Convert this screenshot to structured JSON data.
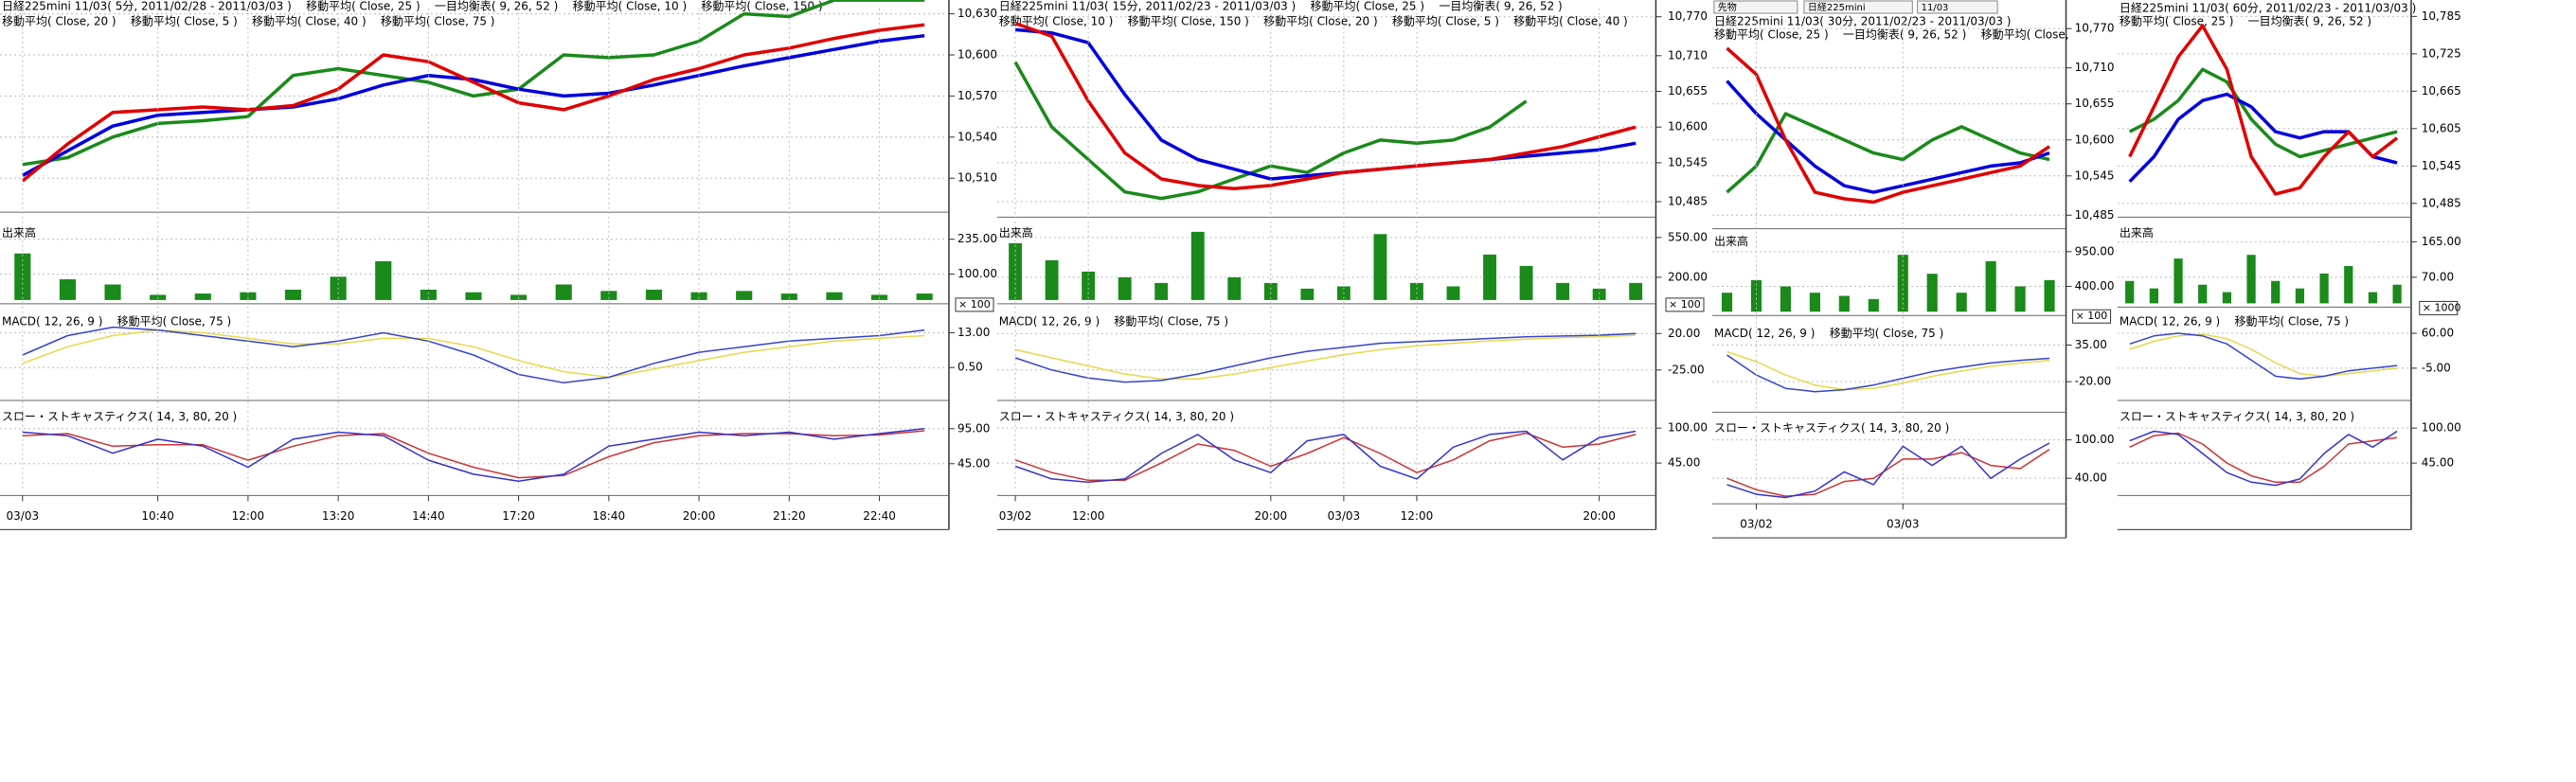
{
  "toolbar": [
    "先物",
    "日経225mini",
    "11/03"
  ],
  "chart_data": [
    {
      "type": "line",
      "title": "日経225mini 11/03( 5分, 2011/02/28 - 2011/03/03 )    移動平均( Close, 25 )    一目均衡表( 9, 26, 52 )    移動平均( Close, 10 )    移動平均( Close, 150 )",
      "subtitle": "移動平均( Close, 20 )    移動平均( Close, 5 )    移動平均( Close, 40 )    移動平均( Close, 75 )",
      "ylim": [
        10488,
        10634
      ],
      "yticks": [
        {
          "value": 10630,
          "label": "10,630"
        },
        {
          "value": 10600,
          "label": "10,600"
        },
        {
          "value": 10570,
          "label": "10,570"
        },
        {
          "value": 10540,
          "label": "10,540"
        },
        {
          "value": 10510,
          "label": "10,510"
        }
      ],
      "grid": true,
      "series": [
        {
          "color": "#1a8a1a",
          "values": [
            10520,
            10525,
            10540,
            10550,
            10552,
            10555,
            10585,
            10590,
            10585,
            10580,
            10570,
            10575,
            10600,
            10598,
            10600,
            10610,
            10630,
            10628,
            10640,
            10640,
            10640
          ]
        },
        {
          "color": "#0000dd",
          "values": [
            10512,
            10530,
            10548,
            10556,
            10558,
            10560,
            10562,
            10568,
            10578,
            10585,
            10582,
            10575,
            10570,
            10572,
            10578,
            10585,
            10592,
            10598,
            10604,
            10610,
            10614
          ]
        },
        {
          "color": "#e00000",
          "values": [
            10508,
            10535,
            10558,
            10560,
            10562,
            10560,
            10563,
            10575,
            10600,
            10595,
            10580,
            10565,
            10560,
            10570,
            10582,
            10590,
            10600,
            10605,
            10612,
            10618,
            10622
          ]
        }
      ]
    },
    {
      "type": "bar",
      "title": "出来高",
      "unit": "× 100",
      "color": "#1a8a1a",
      "ylim": [
        0,
        290
      ],
      "yticks": [
        {
          "value": 235,
          "label": "235.00"
        },
        {
          "value": 100,
          "label": "100.00"
        }
      ],
      "grid": true,
      "values": [
        180,
        80,
        60,
        20,
        25,
        30,
        40,
        90,
        150,
        40,
        30,
        20,
        60,
        35,
        40,
        30,
        35,
        25,
        30,
        20,
        25
      ]
    },
    {
      "type": "line",
      "title": "MACD( 12, 26, 9 )    移動平均( Close, 75 )",
      "ylim": [
        -10,
        20
      ],
      "yticks": [
        {
          "value": 13,
          "label": "13.00"
        },
        {
          "value": 0.5,
          "label": "0.50"
        }
      ],
      "grid": true,
      "series": [
        {
          "color": "#e8d84a",
          "values": [
            2,
            8,
            12,
            14,
            13,
            11,
            9,
            9,
            11,
            11,
            8,
            3,
            -1,
            -3,
            0,
            3,
            6,
            8,
            10,
            11,
            12
          ]
        },
        {
          "color": "#3344cc",
          "values": [
            5,
            12,
            15,
            14,
            12,
            10,
            8,
            10,
            13,
            10,
            5,
            -2,
            -5,
            -3,
            2,
            6,
            8,
            10,
            11,
            12,
            14
          ]
        }
      ]
    },
    {
      "type": "line",
      "title": "スロー・ストキャスティクス( 14, 3, 80, 20 )",
      "ylim": [
        5,
        124
      ],
      "yticks": [
        {
          "value": 95,
          "label": "95.00"
        },
        {
          "value": 45,
          "label": "45.00"
        }
      ],
      "grid": true,
      "categories": [
        "03/03",
        null,
        null,
        "10:40",
        null,
        "12:00",
        null,
        "13:20",
        null,
        "14:40",
        null,
        "17:20",
        null,
        "18:40",
        null,
        "20:00",
        null,
        "21:20",
        null,
        "22:40",
        null
      ],
      "series": [
        {
          "color": "#cc3333",
          "values": [
            85,
            88,
            70,
            72,
            72,
            50,
            70,
            85,
            88,
            60,
            40,
            25,
            28,
            55,
            75,
            85,
            88,
            88,
            85,
            86,
            92
          ]
        },
        {
          "color": "#3333cc",
          "values": [
            90,
            85,
            60,
            80,
            70,
            40,
            80,
            90,
            85,
            50,
            30,
            20,
            30,
            70,
            80,
            90,
            85,
            90,
            80,
            88,
            95
          ]
        }
      ]
    },
    {
      "type": "line",
      "title": "日経225mini 11/03( 15分, 2011/02/23 - 2011/03/03 )    移動平均( Close, 25 )    一目均衡表( 9, 26, 52 )",
      "subtitle": "移動平均( Close, 10 )    移動平均( Close, 150 )    移動平均( Close, 20 )    移動平均( Close, 5 )    移動平均( Close, 40 )",
      "ylim": [
        10467,
        10783
      ],
      "yticks": [
        {
          "value": 10770,
          "label": "10,770"
        },
        {
          "value": 10710,
          "label": "10,710"
        },
        {
          "value": 10655,
          "label": "10,655"
        },
        {
          "value": 10600,
          "label": "10,600"
        },
        {
          "value": 10545,
          "label": "10,545"
        },
        {
          "value": 10485,
          "label": "10,485"
        }
      ],
      "grid": true,
      "series": [
        {
          "color": "#1a8a1a",
          "values": [
            10700,
            10600,
            10550,
            10500,
            10490,
            10500,
            10520,
            10540,
            10530,
            10560,
            10580,
            10575,
            10580,
            10600,
            10640,
            null,
            null,
            null
          ]
        },
        {
          "color": "#0000dd",
          "values": [
            10750,
            10745,
            10730,
            10650,
            10580,
            10550,
            10535,
            10520,
            10525,
            10530,
            10535,
            10540,
            10545,
            10550,
            10555,
            10560,
            10565,
            10575
          ]
        },
        {
          "color": "#e00000",
          "values": [
            10760,
            10740,
            10640,
            10560,
            10520,
            10510,
            10505,
            10510,
            10520,
            10530,
            10535,
            10540,
            10545,
            10550,
            10560,
            10570,
            10585,
            10600
          ]
        }
      ]
    },
    {
      "type": "bar",
      "title": "出来高",
      "unit": "× 100",
      "color": "#1a8a1a",
      "ylim": [
        0,
        660
      ],
      "yticks": [
        {
          "value": 550,
          "label": "550.00"
        },
        {
          "value": 200,
          "label": "200.00"
        }
      ],
      "grid": true,
      "values": [
        500,
        350,
        250,
        200,
        150,
        600,
        200,
        150,
        100,
        120,
        580,
        150,
        120,
        400,
        300,
        150,
        100,
        150
      ]
    },
    {
      "type": "line",
      "title": "MACD( 12, 26, 9 )    移動平均( Close, 75 )",
      "ylim": [
        -58,
        45
      ],
      "yticks": [
        {
          "value": 20,
          "label": "20.00"
        },
        {
          "value": -25,
          "label": "-25.00"
        }
      ],
      "grid": true,
      "series": [
        {
          "color": "#e8d84a",
          "values": [
            0,
            -10,
            -20,
            -30,
            -36,
            -36,
            -30,
            -22,
            -14,
            -6,
            0,
            5,
            8,
            11,
            13,
            15,
            16,
            18
          ]
        },
        {
          "color": "#3344cc",
          "values": [
            -10,
            -25,
            -35,
            -40,
            -38,
            -30,
            -20,
            -10,
            -2,
            3,
            8,
            10,
            12,
            14,
            16,
            17,
            18,
            20
          ]
        }
      ]
    },
    {
      "type": "line",
      "title": "スロー・ストキャスティクス( 14, 3, 80, 20 )",
      "ylim": [
        0,
        131
      ],
      "yticks": [
        {
          "value": 100,
          "label": "100.00"
        },
        {
          "value": 45,
          "label": "45.00"
        }
      ],
      "grid": true,
      "categories": [
        "03/02",
        null,
        "12:00",
        null,
        null,
        null,
        null,
        "20:00",
        null,
        "03/03",
        null,
        "12:00",
        null,
        null,
        null,
        null,
        "20:00",
        null
      ],
      "series": [
        {
          "color": "#cc3333",
          "values": [
            50,
            30,
            18,
            18,
            45,
            75,
            65,
            40,
            60,
            85,
            60,
            30,
            50,
            80,
            92,
            70,
            75,
            90
          ]
        },
        {
          "color": "#3333cc",
          "values": [
            40,
            20,
            15,
            20,
            60,
            90,
            50,
            30,
            80,
            90,
            40,
            20,
            70,
            90,
            95,
            50,
            85,
            95
          ]
        }
      ]
    },
    {
      "type": "line",
      "title": "日経225mini 11/03( 30分, 2011/02/23 - 2011/03/03 )",
      "subtitle": "移動平均( Close, 25 )    一目均衡表( 9, 26, 52 )    移動平均( Close,",
      "ylim": [
        10470,
        10778
      ],
      "yticks": [
        {
          "value": 10770,
          "label": "10,770"
        },
        {
          "value": 10710,
          "label": "10,710"
        },
        {
          "value": 10655,
          "label": "10,655"
        },
        {
          "value": 10600,
          "label": "10,600"
        },
        {
          "value": 10545,
          "label": "10,545"
        },
        {
          "value": 10485,
          "label": "10,485"
        }
      ],
      "grid": true,
      "series": [
        {
          "color": "#1a8a1a",
          "values": [
            10520,
            10560,
            10640,
            10620,
            10600,
            10580,
            10570,
            10600,
            10620,
            10600,
            10580,
            10570
          ]
        },
        {
          "color": "#0000dd",
          "values": [
            10690,
            10640,
            10600,
            10560,
            10530,
            10520,
            10530,
            10540,
            10550,
            10560,
            10565,
            10580
          ]
        },
        {
          "color": "#e00000",
          "values": [
            10740,
            10700,
            10600,
            10520,
            10510,
            10505,
            10520,
            10530,
            10540,
            10550,
            10560,
            10590
          ]
        }
      ]
    },
    {
      "type": "bar",
      "title": "出来高",
      "unit": "× 100",
      "color": "#1a8a1a",
      "ylim": [
        0,
        1240
      ],
      "yticks": [
        {
          "value": 950,
          "label": "950.00"
        },
        {
          "value": 400,
          "label": "400.00"
        }
      ],
      "grid": true,
      "values": [
        300,
        500,
        400,
        300,
        250,
        200,
        900,
        600,
        300,
        800,
        400,
        500
      ]
    },
    {
      "type": "line",
      "title": "MACD( 12, 26, 9 )    移動平均( Close, 75 )",
      "ylim": [
        -60,
        65
      ],
      "yticks": [
        {
          "value": 35,
          "label": "35.00"
        },
        {
          "value": -20,
          "label": "-20.00"
        }
      ],
      "grid": true,
      "series": [
        {
          "color": "#e8d84a",
          "values": [
            25,
            10,
            -10,
            -25,
            -32,
            -30,
            -22,
            -12,
            -4,
            3,
            8,
            12
          ]
        },
        {
          "color": "#3344cc",
          "values": [
            20,
            -10,
            -30,
            -35,
            -32,
            -25,
            -15,
            -5,
            2,
            8,
            12,
            15
          ]
        }
      ]
    },
    {
      "type": "line",
      "title": "スロー・ストキャスティクス( 14, 3, 80, 20 )",
      "ylim": [
        6,
        131
      ],
      "yticks": [
        {
          "value": 100,
          "label": "100.00"
        },
        {
          "value": 40,
          "label": "40.00"
        }
      ],
      "grid": true,
      "categories": [
        null,
        "03/02",
        null,
        null,
        null,
        null,
        "03/03",
        null,
        null,
        null,
        null,
        null
      ],
      "series": [
        {
          "color": "#cc3333",
          "values": [
            40,
            22,
            12,
            15,
            35,
            40,
            70,
            70,
            80,
            60,
            55,
            85
          ]
        },
        {
          "color": "#3333cc",
          "values": [
            30,
            15,
            10,
            20,
            50,
            30,
            90,
            60,
            90,
            40,
            70,
            95
          ]
        }
      ]
    },
    {
      "type": "line",
      "title": "日経225mini 11/03( 60分, 2011/02/23 - 2011/03/03 )",
      "subtitle": "移動平均( Close, 25 )    一目均衡表( 9, 26, 52 )",
      "ylim": [
        10469,
        10798
      ],
      "yticks": [
        {
          "value": 10785,
          "label": "10,785"
        },
        {
          "value": 10725,
          "label": "10,725"
        },
        {
          "value": 10665,
          "label": "10,665"
        },
        {
          "value": 10605,
          "label": "10,605"
        },
        {
          "value": 10545,
          "label": "10,545"
        },
        {
          "value": 10485,
          "label": "10,485"
        }
      ],
      "grid": true,
      "series": [
        {
          "color": "#1a8a1a",
          "values": [
            10600,
            10620,
            10650,
            10700,
            10680,
            10620,
            10580,
            10560,
            10570,
            10580,
            10590,
            10600
          ]
        },
        {
          "color": "#0000dd",
          "values": [
            10520,
            10560,
            10620,
            10650,
            10660,
            10640,
            10600,
            10590,
            10600,
            10600,
            10560,
            10550
          ]
        },
        {
          "color": "#e00000",
          "values": [
            10560,
            10640,
            10720,
            10770,
            10700,
            10560,
            10500,
            10510,
            10560,
            10600,
            10560,
            10590
          ]
        }
      ]
    },
    {
      "type": "bar",
      "title": "出来高",
      "unit": "× 1000",
      "color": "#1a8a1a",
      "ylim": [
        0,
        210
      ],
      "yticks": [
        {
          "value": 165,
          "label": "165.00"
        },
        {
          "value": 70,
          "label": "70.00"
        }
      ],
      "grid": true,
      "values": [
        60,
        40,
        120,
        50,
        30,
        130,
        60,
        40,
        80,
        100,
        30,
        50
      ]
    },
    {
      "type": "line",
      "title": "MACD( 12, 26, 9 )    移動平均( Close, 75 )",
      "ylim": [
        -58,
        97
      ],
      "yticks": [
        {
          "value": 60,
          "label": "60.00"
        },
        {
          "value": -5,
          "label": "-5.00"
        }
      ],
      "grid": true,
      "series": [
        {
          "color": "#e8d84a",
          "values": [
            30,
            45,
            55,
            58,
            50,
            30,
            5,
            -15,
            -20,
            -15,
            -10,
            -5
          ]
        },
        {
          "color": "#3344cc",
          "values": [
            40,
            55,
            60,
            55,
            40,
            10,
            -20,
            -25,
            -20,
            -10,
            -5,
            0
          ]
        }
      ]
    },
    {
      "type": "line",
      "title": "スロー・ストキャスティクス( 14, 3, 80, 20 )",
      "ylim": [
        0,
        131
      ],
      "yticks": [
        {
          "value": 100,
          "label": "100.00"
        },
        {
          "value": 45,
          "label": "45.00"
        }
      ],
      "grid": true,
      "series": [
        {
          "color": "#cc3333",
          "values": [
            70,
            88,
            92,
            75,
            45,
            25,
            15,
            15,
            40,
            75,
            80,
            85
          ]
        },
        {
          "color": "#3333cc",
          "values": [
            80,
            95,
            90,
            60,
            30,
            15,
            10,
            20,
            60,
            90,
            70,
            95
          ]
        }
      ]
    }
  ]
}
